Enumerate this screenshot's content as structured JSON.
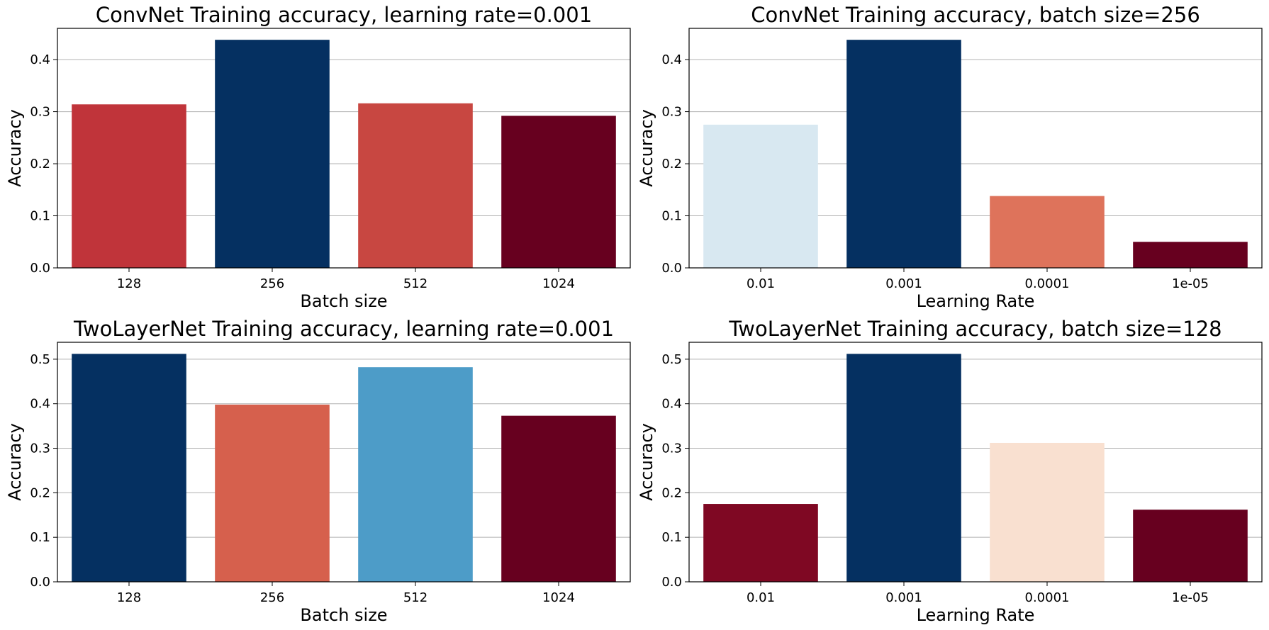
{
  "figure": {
    "background": "#ffffff",
    "grid_color": "#b0b0b0"
  },
  "chart_data": [
    {
      "type": "bar",
      "title": "ConvNet Training accuracy, learning rate=0.001",
      "xlabel": "Batch size",
      "ylabel": "Accuracy",
      "categories": [
        "128",
        "256",
        "512",
        "1024"
      ],
      "values": [
        0.314,
        0.438,
        0.316,
        0.292
      ],
      "colors": [
        "#c0343a",
        "#053061",
        "#c84741",
        "#67001f"
      ],
      "ylim": [
        0,
        0.46
      ],
      "yticks": [
        0.0,
        0.1,
        0.2,
        0.3,
        0.4
      ],
      "ytick_labels": [
        "0.0",
        "0.1",
        "0.2",
        "0.3",
        "0.4"
      ],
      "grid": "y"
    },
    {
      "type": "bar",
      "title": "ConvNet Training accuracy, batch size=256",
      "xlabel": "Learning Rate",
      "ylabel": "Accuracy",
      "categories": [
        "0.01",
        "0.001",
        "0.0001",
        "1e-05"
      ],
      "values": [
        0.275,
        0.438,
        0.138,
        0.05
      ],
      "colors": [
        "#d8e8f1",
        "#053061",
        "#de735b",
        "#67001f"
      ],
      "ylim": [
        0,
        0.46
      ],
      "yticks": [
        0.0,
        0.1,
        0.2,
        0.3,
        0.4
      ],
      "ytick_labels": [
        "0.0",
        "0.1",
        "0.2",
        "0.3",
        "0.4"
      ],
      "grid": "y"
    },
    {
      "type": "bar",
      "title": "TwoLayerNet Training accuracy, learning rate=0.001",
      "xlabel": "Batch size",
      "ylabel": "Accuracy",
      "categories": [
        "128",
        "256",
        "512",
        "1024"
      ],
      "values": [
        0.512,
        0.398,
        0.482,
        0.373
      ],
      "colors": [
        "#053061",
        "#d6604d",
        "#4d9cc8",
        "#67001f"
      ],
      "ylim": [
        0,
        0.538
      ],
      "yticks": [
        0.0,
        0.1,
        0.2,
        0.3,
        0.4,
        0.5
      ],
      "ytick_labels": [
        "0.0",
        "0.1",
        "0.2",
        "0.3",
        "0.4",
        "0.5"
      ],
      "grid": "y"
    },
    {
      "type": "bar",
      "title": "TwoLayerNet Training accuracy, batch size=128",
      "xlabel": "Learning Rate",
      "ylabel": "Accuracy",
      "categories": [
        "0.01",
        "0.001",
        "0.0001",
        "1e-05"
      ],
      "values": [
        0.175,
        0.512,
        0.312,
        0.162
      ],
      "colors": [
        "#7f0823",
        "#053061",
        "#f9e0d0",
        "#67001f"
      ],
      "ylim": [
        0,
        0.538
      ],
      "yticks": [
        0.0,
        0.1,
        0.2,
        0.3,
        0.4,
        0.5
      ],
      "ytick_labels": [
        "0.0",
        "0.1",
        "0.2",
        "0.3",
        "0.4",
        "0.5"
      ],
      "grid": "y"
    }
  ]
}
